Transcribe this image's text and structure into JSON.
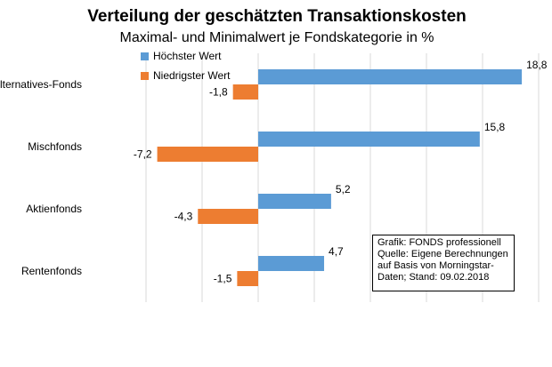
{
  "chart_data": {
    "type": "bar",
    "orientation": "horizontal",
    "title": "Verteilung der geschätzten Transaktionskosten",
    "subtitle": "Maximal- und Minimalwert je Fondskategorie in %",
    "categories": [
      "Alternatives-Fonds",
      "Mischfonds",
      "Aktienfonds",
      "Rentenfonds"
    ],
    "series": [
      {
        "name": "Höchster Wert",
        "color": "#5B9BD5",
        "values": [
          18.8,
          15.8,
          5.2,
          4.7
        ],
        "labels": [
          "18,8",
          "15,8",
          "5,2",
          "4,7"
        ]
      },
      {
        "name": "Niedrigster Wert",
        "color": "#ED7D31",
        "values": [
          -1.8,
          -7.2,
          -4.3,
          -1.5
        ],
        "labels": [
          "-1,8",
          "-7,2",
          "-4,3",
          "-1,5"
        ]
      }
    ],
    "xlim": [
      -12,
      20
    ],
    "grid": true,
    "legend_position": "top-left"
  },
  "note": {
    "lines": [
      "Grafik: FONDS professionell",
      "Quelle: Eigene Berechnungen",
      "auf Basis von Morningstar-",
      "Daten; Stand: 09.02.2018"
    ]
  }
}
